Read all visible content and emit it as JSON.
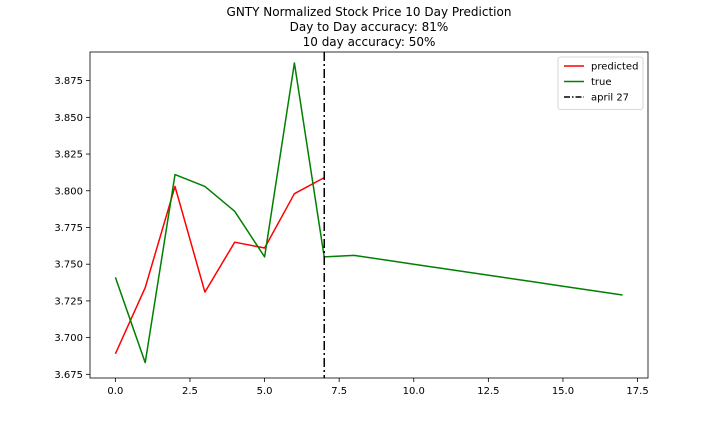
{
  "chart_data": {
    "type": "line",
    "title_lines": [
      "GNTY Normalized Stock Price 10 Day Prediction",
      "Day to Day accuracy: 81%",
      "10 day accuracy: 50%"
    ],
    "xlabel": "",
    "ylabel": "",
    "xlim": [
      -0.85,
      17.85
    ],
    "ylim": [
      3.6725,
      3.8945
    ],
    "xticks": [
      0.0,
      2.5,
      5.0,
      7.5,
      10.0,
      12.5,
      15.0,
      17.5
    ],
    "xtick_labels": [
      "0.0",
      "2.5",
      "5.0",
      "7.5",
      "10.0",
      "12.5",
      "15.0",
      "17.5"
    ],
    "yticks": [
      3.675,
      3.7,
      3.725,
      3.75,
      3.775,
      3.8,
      3.825,
      3.85,
      3.875
    ],
    "ytick_labels": [
      "3.675",
      "3.700",
      "3.725",
      "3.750",
      "3.775",
      "3.800",
      "3.825",
      "3.850",
      "3.875"
    ],
    "grid": false,
    "legend_position": "top-right",
    "series": [
      {
        "name": "predicted",
        "color": "#ff0000",
        "style": "solid",
        "x": [
          0,
          1,
          2,
          3,
          4,
          5,
          6,
          7
        ],
        "y": [
          3.689,
          3.734,
          3.803,
          3.731,
          3.765,
          3.761,
          3.798,
          3.809
        ]
      },
      {
        "name": "true",
        "color": "#008000",
        "style": "solid",
        "x": [
          0,
          1,
          2,
          3,
          4,
          5,
          6,
          7,
          8,
          9,
          10,
          11,
          12,
          13,
          14,
          15,
          16,
          17
        ],
        "y": [
          3.741,
          3.683,
          3.811,
          3.803,
          3.786,
          3.755,
          3.887,
          3.755,
          3.756,
          3.753,
          3.75,
          3.747,
          3.744,
          3.741,
          3.738,
          3.735,
          3.732,
          3.729
        ]
      }
    ],
    "vlines": [
      {
        "name": "april 27",
        "x": 7,
        "color": "#000000",
        "style": "dashdot"
      }
    ]
  }
}
